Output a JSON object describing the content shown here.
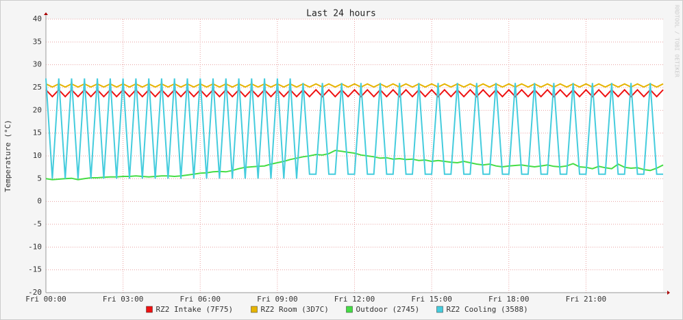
{
  "chart_data": {
    "type": "line",
    "title": "Last 24 hours",
    "ylabel": "Temperature (°C)",
    "watermark": "RRDTOOL / TOBI OETIKER",
    "grid": true,
    "xlim": [
      0,
      24
    ],
    "xticks": [
      {
        "value": 0,
        "label": "Fri 00:00"
      },
      {
        "value": 3,
        "label": "Fri 03:00"
      },
      {
        "value": 6,
        "label": "Fri 06:00"
      },
      {
        "value": 9,
        "label": "Fri 09:00"
      },
      {
        "value": 12,
        "label": "Fri 12:00"
      },
      {
        "value": 15,
        "label": "Fri 15:00"
      },
      {
        "value": 18,
        "label": "Fri 18:00"
      },
      {
        "value": 21,
        "label": "Fri 21:00"
      }
    ],
    "ylim": [
      -20,
      40
    ],
    "yticks": [
      -20,
      -15,
      -10,
      -5,
      0,
      5,
      10,
      15,
      20,
      25,
      30,
      35,
      40
    ],
    "x": [
      0,
      0.25,
      0.5,
      0.75,
      1,
      1.25,
      1.5,
      1.75,
      2,
      2.25,
      2.5,
      2.75,
      3,
      3.25,
      3.5,
      3.75,
      4,
      4.25,
      4.5,
      4.75,
      5,
      5.25,
      5.5,
      5.75,
      6,
      6.25,
      6.5,
      6.75,
      7,
      7.25,
      7.5,
      7.75,
      8,
      8.25,
      8.5,
      8.75,
      9,
      9.25,
      9.5,
      9.75,
      10,
      10.25,
      10.5,
      10.75,
      11,
      11.25,
      11.5,
      11.75,
      12,
      12.25,
      12.5,
      12.75,
      13,
      13.25,
      13.5,
      13.75,
      14,
      14.25,
      14.5,
      14.75,
      15,
      15.25,
      15.5,
      15.75,
      16,
      16.25,
      16.5,
      16.75,
      17,
      17.25,
      17.5,
      17.75,
      18,
      18.25,
      18.5,
      18.75,
      19,
      19.25,
      19.5,
      19.75,
      20,
      20.25,
      20.5,
      20.75,
      21,
      21.25,
      21.5,
      21.75,
      22,
      22.25,
      22.5,
      22.75,
      23,
      23.25,
      23.5,
      23.75,
      24
    ],
    "series": [
      {
        "name": "RZ2 Intake (7F75)",
        "color": "#ee1111",
        "values": [
          24.5,
          23,
          24.5,
          23,
          24.5,
          23,
          24.5,
          23,
          24.5,
          23,
          24.5,
          23,
          24.5,
          23,
          24.5,
          23,
          24.5,
          23,
          24.5,
          23,
          24.5,
          23,
          24.5,
          23,
          24.5,
          23,
          24.5,
          23,
          24.5,
          23,
          24.5,
          23,
          24.5,
          23,
          24.5,
          23,
          24.5,
          23,
          24.5,
          23,
          24.5,
          23,
          24.5,
          23,
          24.5,
          23,
          24.5,
          23,
          24.5,
          23,
          24.5,
          23,
          24.5,
          23,
          24.5,
          23,
          24.5,
          23,
          24.5,
          23,
          24.5,
          23,
          24.5,
          23,
          24.5,
          23,
          24.5,
          23,
          24.5,
          23,
          24.5,
          23,
          24.5,
          23,
          24.5,
          23,
          24.5,
          23,
          24.5,
          23,
          24.5,
          23,
          24.5,
          23,
          24.5,
          23,
          24.5,
          23,
          24.5,
          23,
          24.5,
          23,
          24.5,
          23,
          24.5,
          23,
          24.5
        ]
      },
      {
        "name": "RZ2 Room (3D7C)",
        "color": "#e6b400",
        "values": [
          25.8,
          25.1,
          25.8,
          25.1,
          25.8,
          25.1,
          25.8,
          25.1,
          25.8,
          25.1,
          25.8,
          25.1,
          25.8,
          25.1,
          25.8,
          25.1,
          25.8,
          25.1,
          25.8,
          25.1,
          25.8,
          25.1,
          25.8,
          25.1,
          25.8,
          25.1,
          25.8,
          25.1,
          25.8,
          25.1,
          25.8,
          25.1,
          25.8,
          25.1,
          25.8,
          25.1,
          25.8,
          25.1,
          25.8,
          25.1,
          25.8,
          25.1,
          25.8,
          25.1,
          25.8,
          25.1,
          25.8,
          25.1,
          25.8,
          25.1,
          25.8,
          25.1,
          25.8,
          25.1,
          25.8,
          25.1,
          25.8,
          25.1,
          25.8,
          25.1,
          25.8,
          25.1,
          25.8,
          25.1,
          25.8,
          25.1,
          25.8,
          25.1,
          25.8,
          25.1,
          25.8,
          25.1,
          25.8,
          25.1,
          25.8,
          25.1,
          25.8,
          25.1,
          25.8,
          25.1,
          25.8,
          25.1,
          25.8,
          25.1,
          25.8,
          25.1,
          25.8,
          25.1,
          25.8,
          25.1,
          25.8,
          25.1,
          25.8,
          25.1,
          25.8,
          25.1,
          25.8
        ]
      },
      {
        "name": "Outdoor (2745)",
        "color": "#44dd44",
        "values": [
          5,
          4.8,
          4.9,
          5,
          5.1,
          4.8,
          5,
          5.2,
          5.2,
          5.3,
          5.4,
          5.4,
          5.5,
          5.5,
          5.6,
          5.5,
          5.4,
          5.5,
          5.6,
          5.6,
          5.5,
          5.6,
          5.8,
          6,
          6.2,
          6.3,
          6.5,
          6.6,
          6.5,
          6.8,
          7.2,
          7.5,
          7.6,
          7.7,
          7.8,
          8.2,
          8.5,
          8.8,
          9.2,
          9.5,
          9.8,
          10,
          10.3,
          10.2,
          10.5,
          11.2,
          11,
          10.8,
          10.6,
          10.2,
          10,
          9.8,
          9.5,
          9.6,
          9.3,
          9.4,
          9.2,
          9.3,
          9,
          9.1,
          8.8,
          9,
          8.8,
          8.6,
          8.5,
          8.8,
          8.5,
          8.2,
          8,
          8.2,
          7.8,
          7.6,
          7.8,
          7.9,
          8,
          7.8,
          7.6,
          7.8,
          8,
          7.7,
          7.6,
          7.8,
          8.3,
          7.6,
          7.5,
          7.2,
          7.7,
          7.4,
          7.2,
          8.2,
          7.5,
          7.3,
          7.4,
          7,
          6.8,
          7.3,
          8
        ]
      },
      {
        "name": "RZ2 Cooling (3588)",
        "color": "#44ccdd",
        "values": [
          27,
          5,
          27,
          5,
          27,
          5,
          27,
          5,
          27,
          5,
          27,
          5,
          27,
          5,
          27,
          5,
          27,
          5,
          27,
          5,
          27,
          5,
          27,
          5,
          27,
          5,
          27,
          5,
          27,
          5,
          27,
          5,
          27,
          5,
          27,
          5,
          27,
          5,
          27,
          5,
          26,
          6,
          6,
          26,
          6,
          6,
          26,
          6,
          6,
          26,
          6,
          6,
          26,
          6,
          6,
          26,
          6,
          6,
          26,
          6,
          6,
          26,
          6,
          6,
          26,
          6,
          6,
          26,
          6,
          6,
          26,
          6,
          6,
          26,
          6,
          6,
          26,
          6,
          6,
          26,
          6,
          6,
          26,
          6,
          6,
          26,
          6,
          6,
          26,
          6,
          6,
          26,
          6,
          6,
          26,
          6,
          6
        ]
      }
    ]
  }
}
